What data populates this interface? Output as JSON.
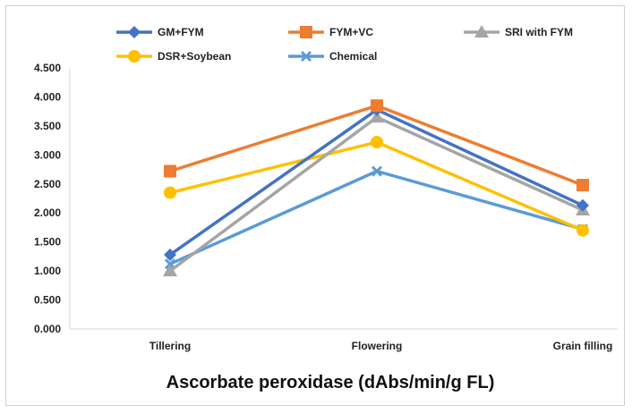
{
  "chart_data": {
    "type": "line",
    "title": "",
    "xlabel": "Ascorbate peroxidase (dAbs/min/g FL)",
    "ylabel": "",
    "categories": [
      "Tillering",
      "Flowering",
      "Grain filling"
    ],
    "ylim": [
      0,
      4.5
    ],
    "yticks": [
      "0.000",
      "0.500",
      "1.000",
      "1.500",
      "2.000",
      "2.500",
      "3.000",
      "3.500",
      "4.000",
      "4.500"
    ],
    "grid": false,
    "legend_position": "top",
    "series": [
      {
        "name": "GM+FYM",
        "values": [
          1.28,
          3.78,
          2.13
        ],
        "color": "#4472c4",
        "marker": "diamond"
      },
      {
        "name": "FYM+VC",
        "values": [
          2.72,
          3.85,
          2.48
        ],
        "color": "#ed7d31",
        "marker": "square"
      },
      {
        "name": "SRI with FYM",
        "values": [
          1.0,
          3.65,
          2.05
        ],
        "color": "#a5a5a5",
        "marker": "triangle"
      },
      {
        "name": "DSR+Soybean",
        "values": [
          2.35,
          3.22,
          1.7
        ],
        "color": "#ffc000",
        "marker": "circle"
      },
      {
        "name": "Chemical",
        "values": [
          1.12,
          2.72,
          1.72
        ],
        "color": "#5b9bd5",
        "marker": "x"
      }
    ]
  }
}
